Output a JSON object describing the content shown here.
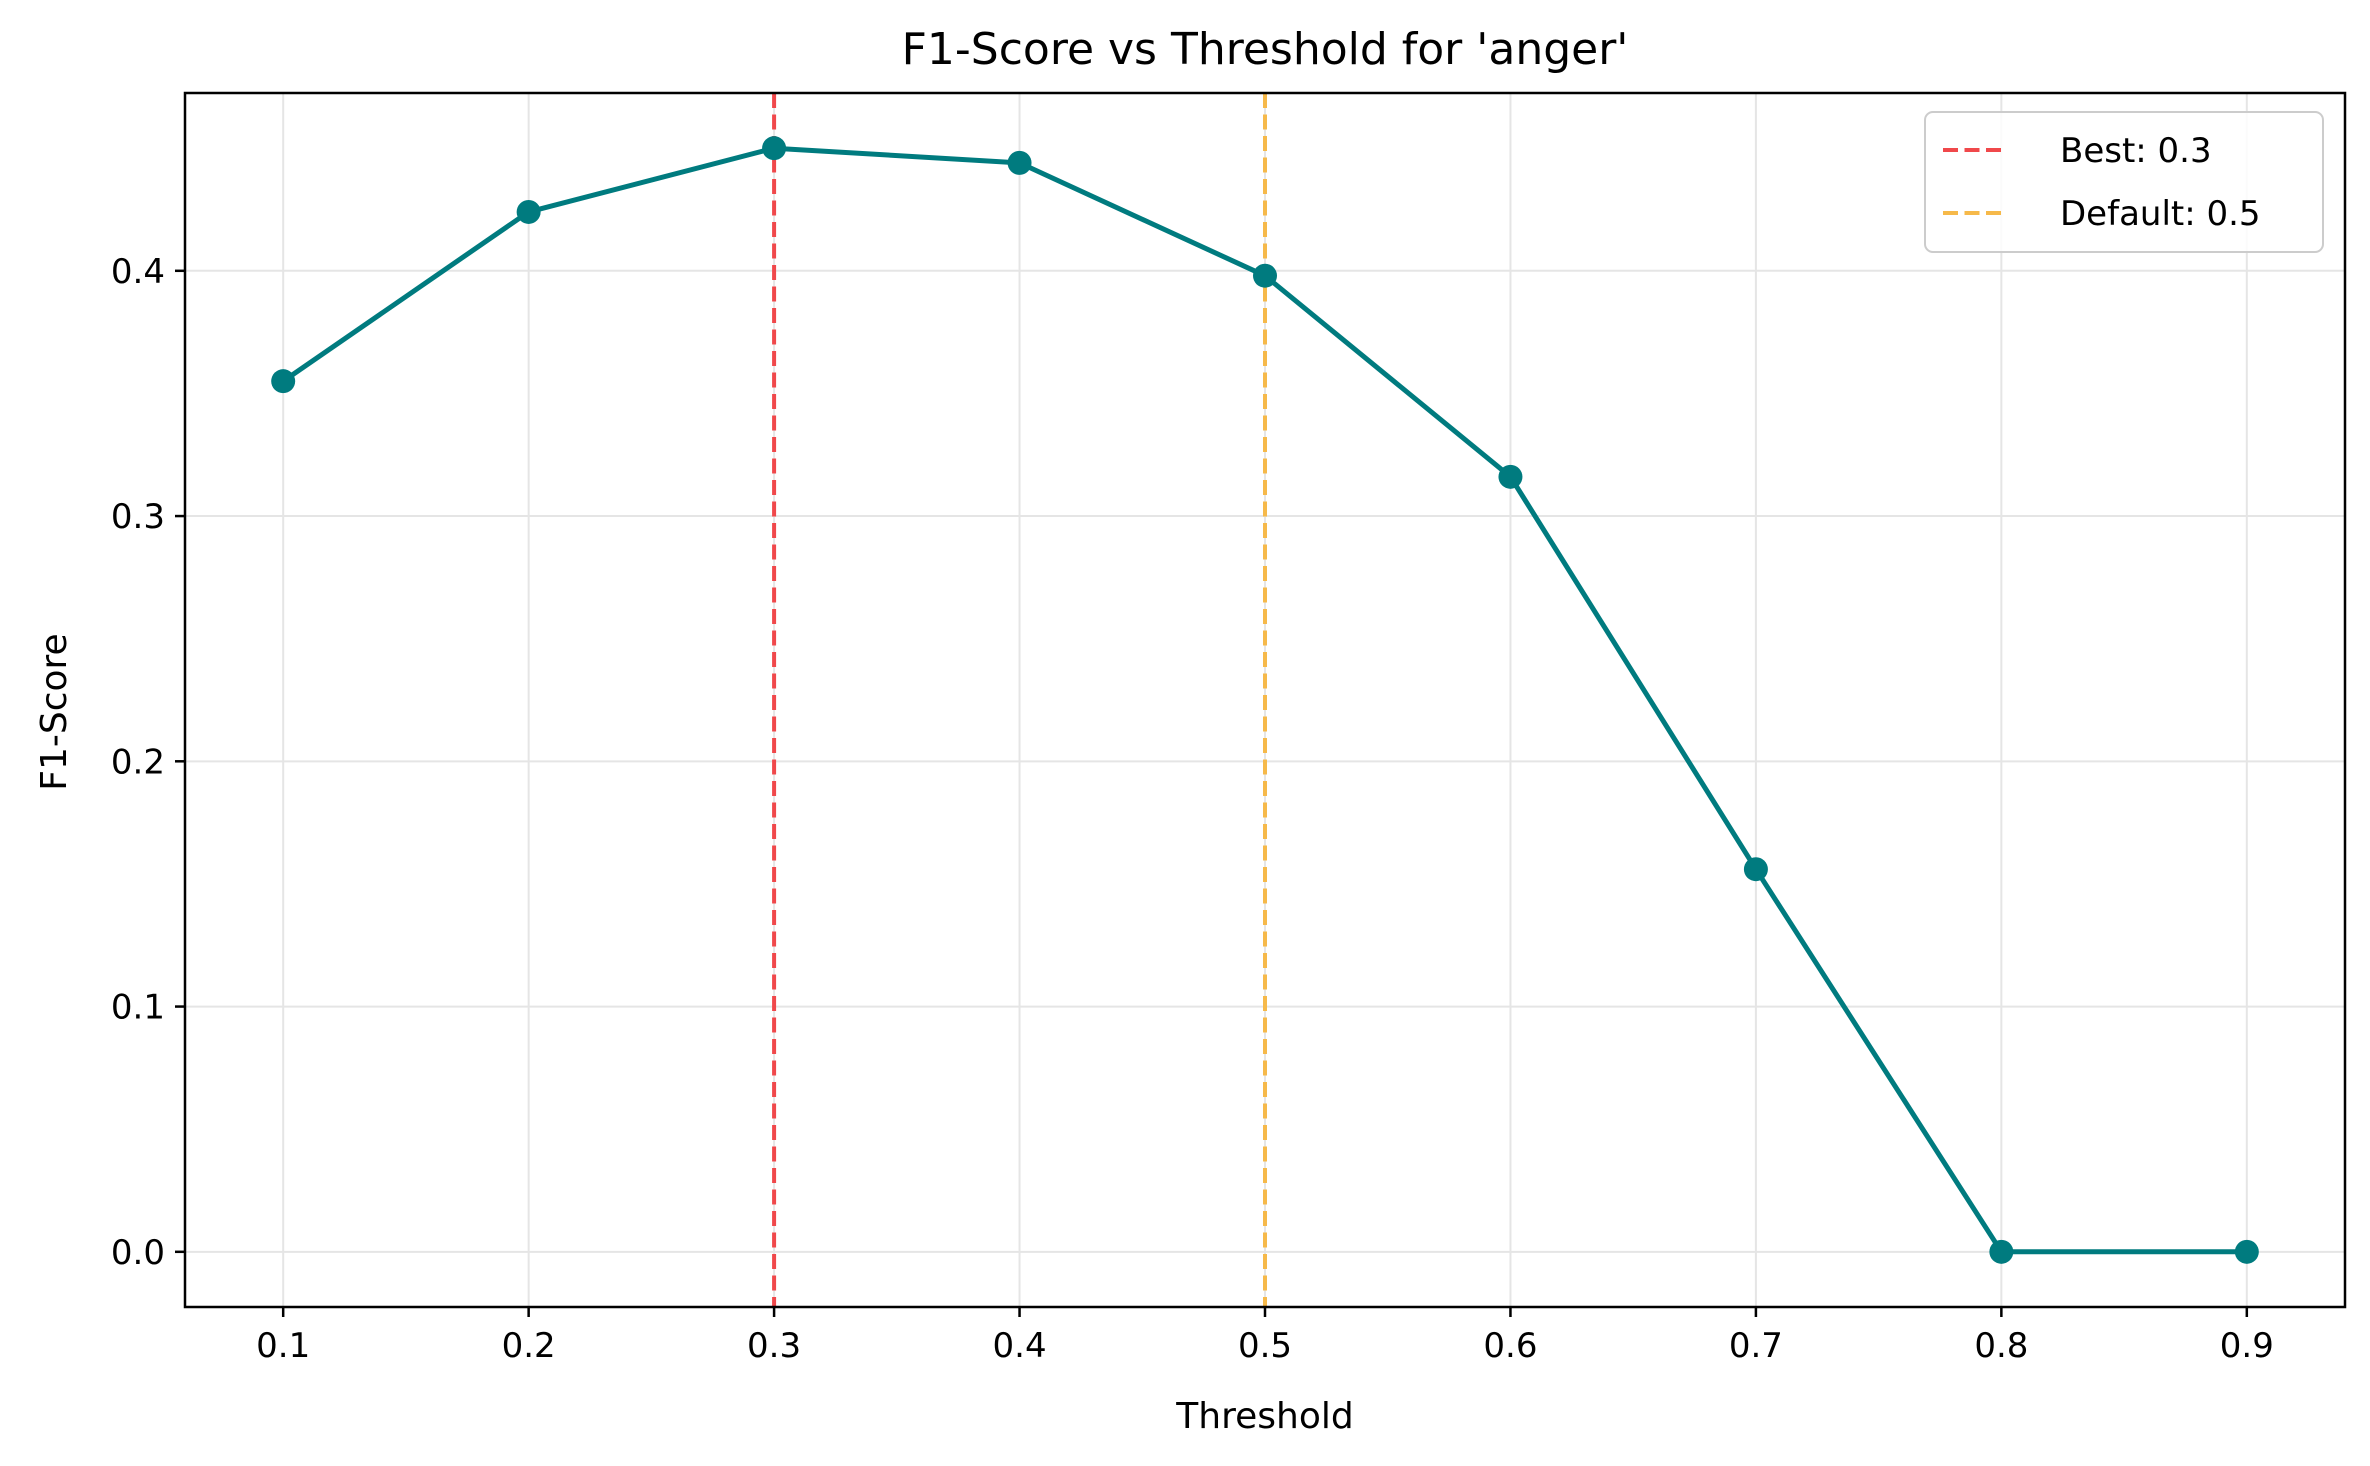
{
  "colors": {
    "series": "#007b7f",
    "best_line": "#f0484b",
    "default_line": "#f6b94a",
    "grid": "#e5e5e5",
    "axes": "#000000"
  },
  "chart_data": {
    "type": "line",
    "title": "F1-Score vs Threshold for 'anger'",
    "xlabel": "Threshold",
    "ylabel": "F1-Score",
    "xlim": [
      0.06,
      0.94
    ],
    "ylim": [
      -0.0225,
      0.4725
    ],
    "x_ticks": [
      0.1,
      0.2,
      0.3,
      0.4,
      0.5,
      0.6,
      0.7,
      0.8,
      0.9
    ],
    "x_tick_labels": [
      "0.1",
      "0.2",
      "0.3",
      "0.4",
      "0.5",
      "0.6",
      "0.7",
      "0.8",
      "0.9"
    ],
    "y_ticks": [
      0.0,
      0.1,
      0.2,
      0.3,
      0.4
    ],
    "y_tick_labels": [
      "0.0",
      "0.1",
      "0.2",
      "0.3",
      "0.4"
    ],
    "grid": true,
    "legend_position": "top-right",
    "series": [
      {
        "x": [
          0.1,
          0.2,
          0.3,
          0.4,
          0.5,
          0.6,
          0.7,
          0.8,
          0.9
        ],
        "y": [
          0.355,
          0.424,
          0.45,
          0.444,
          0.398,
          0.316,
          0.156,
          0.0,
          0.0
        ],
        "marker": "circle",
        "color": "#007b7f"
      }
    ],
    "reference_lines": [
      {
        "label": "Best: 0.3",
        "x": 0.3,
        "style": "dashed",
        "color": "#f0484b"
      },
      {
        "label": "Default: 0.5",
        "x": 0.5,
        "style": "dashed",
        "color": "#f6b94a"
      }
    ]
  }
}
